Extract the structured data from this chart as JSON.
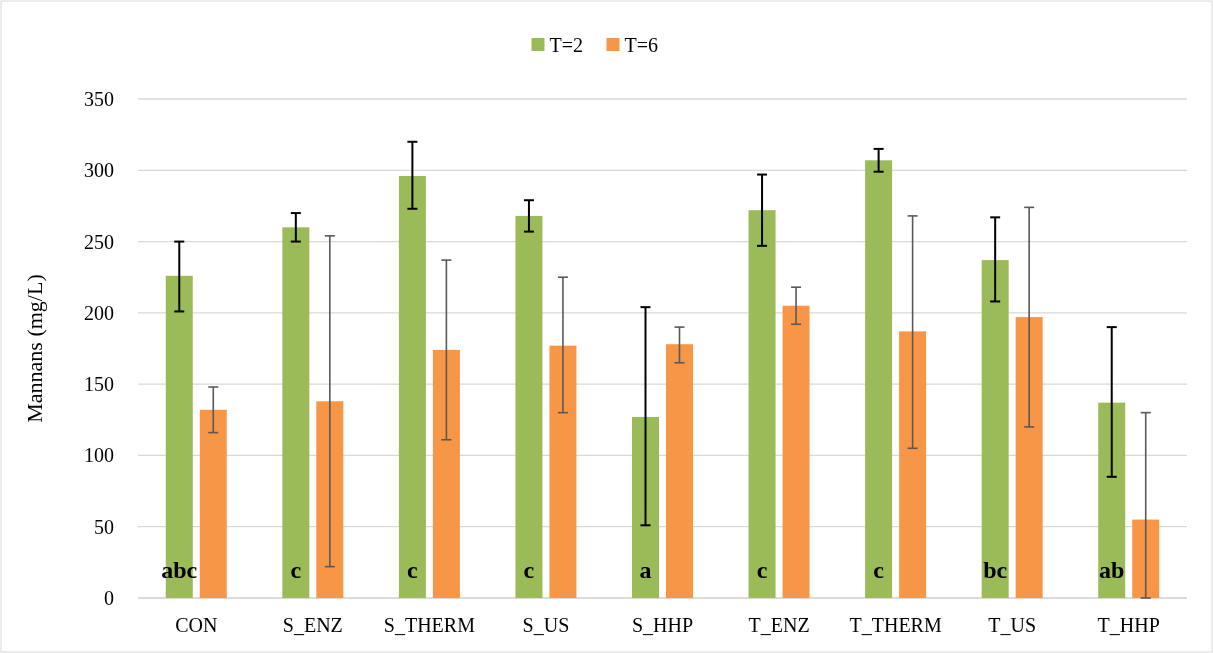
{
  "chart_data": {
    "type": "bar",
    "ylabel": "Mannans (mg/L)",
    "categories": [
      "CON",
      "S_ENZ",
      "S_THERM",
      "S_US",
      "S_HHP",
      "T_ENZ",
      "T_THERM",
      "T_US",
      "T_HHP"
    ],
    "series": [
      {
        "name": "T=2",
        "color": "#9bbb59",
        "values": [
          226,
          260,
          296,
          268,
          127,
          272,
          307,
          237,
          137
        ],
        "errors": [
          [
            201,
            250
          ],
          [
            250,
            270
          ],
          [
            273,
            320
          ],
          [
            257,
            279
          ],
          [
            51,
            204
          ],
          [
            247,
            297
          ],
          [
            299,
            315
          ],
          [
            208,
            267
          ],
          [
            85,
            190
          ]
        ]
      },
      {
        "name": "T=6",
        "color": "#f79646",
        "values": [
          132,
          138,
          174,
          177,
          178,
          205,
          187,
          197,
          55
        ],
        "errors": [
          [
            116,
            148
          ],
          [
            22,
            254
          ],
          [
            111,
            237
          ],
          [
            130,
            225
          ],
          [
            165,
            190
          ],
          [
            192,
            218
          ],
          [
            105,
            268
          ],
          [
            120,
            274
          ],
          [
            0,
            130
          ]
        ]
      }
    ],
    "ylim": [
      0,
      350
    ],
    "yticks": [
      0,
      50,
      100,
      150,
      200,
      250,
      300,
      350
    ],
    "grid": "y",
    "legend": "top",
    "annotations": [
      {
        "text": "abc",
        "x": "CON",
        "y": 20
      },
      {
        "text": "c",
        "x": "S_ENZ",
        "y": 20
      },
      {
        "text": "c",
        "x": "S_THERM",
        "y": 20
      },
      {
        "text": "c",
        "x": "S_US",
        "y": 20
      },
      {
        "text": "a",
        "x": "S_HHP",
        "y": 20
      },
      {
        "text": "c",
        "x": "T_ENZ",
        "y": 20
      },
      {
        "text": "c",
        "x": "T_THERM",
        "y": 20
      },
      {
        "text": "bc",
        "x": "T_US",
        "y": 20
      },
      {
        "text": "ab",
        "x": "T_HHP",
        "y": 20
      }
    ]
  }
}
